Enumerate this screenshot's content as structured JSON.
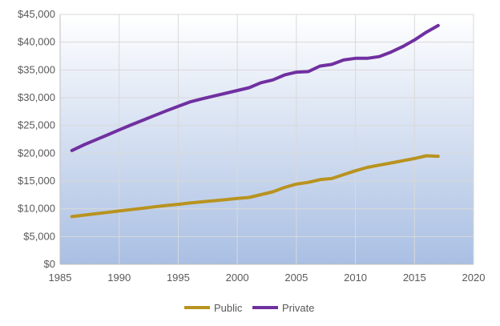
{
  "chart_data": {
    "type": "line",
    "title": "",
    "xlabel": "",
    "ylabel": "",
    "xlim": [
      1985,
      2020
    ],
    "ylim": [
      0,
      45000
    ],
    "xticks": [
      1985,
      1990,
      1995,
      2000,
      2005,
      2010,
      2015,
      2020
    ],
    "xtick_labels": [
      "1985",
      "1990",
      "1995",
      "2000",
      "2005",
      "2010",
      "2015",
      "2020"
    ],
    "yticks": [
      0,
      5000,
      10000,
      15000,
      20000,
      25000,
      30000,
      35000,
      40000,
      45000
    ],
    "ytick_labels": [
      "$0",
      "$5,000",
      "$10,000",
      "$15,000",
      "$20,000",
      "$25,000",
      "$30,000",
      "$35,000",
      "$40,000",
      "$45,000"
    ],
    "grid": true,
    "legend_position": "bottom",
    "background": "gradient white-to-blue",
    "x": [
      1986,
      1987,
      1988,
      1989,
      1990,
      1991,
      1992,
      1993,
      1994,
      1995,
      1996,
      1997,
      1998,
      1999,
      2000,
      2001,
      2002,
      2003,
      2004,
      2005,
      2006,
      2007,
      2008,
      2009,
      2010,
      2011,
      2012,
      2013,
      2014,
      2015,
      2016,
      2017
    ],
    "series": [
      {
        "name": "Public",
        "color": "#b8931f",
        "values": [
          8600,
          8850,
          9100,
          9350,
          9600,
          9850,
          10100,
          10350,
          10600,
          10800,
          11050,
          11250,
          11450,
          11650,
          11850,
          12050,
          12550,
          13050,
          13850,
          14450,
          14750,
          15250,
          15450,
          16150,
          16850,
          17450,
          17850,
          18250,
          18650,
          19050,
          19550,
          19450
        ]
      },
      {
        "name": "Private",
        "color": "#7030a0",
        "values": [
          20500,
          21500,
          22400,
          23300,
          24200,
          25100,
          25950,
          26800,
          27650,
          28450,
          29250,
          29800,
          30300,
          30800,
          31300,
          31800,
          32700,
          33200,
          34100,
          34600,
          34700,
          35700,
          36000,
          36800,
          37100,
          37100,
          37400,
          38200,
          39200,
          40400,
          41800,
          43000
        ]
      }
    ]
  }
}
